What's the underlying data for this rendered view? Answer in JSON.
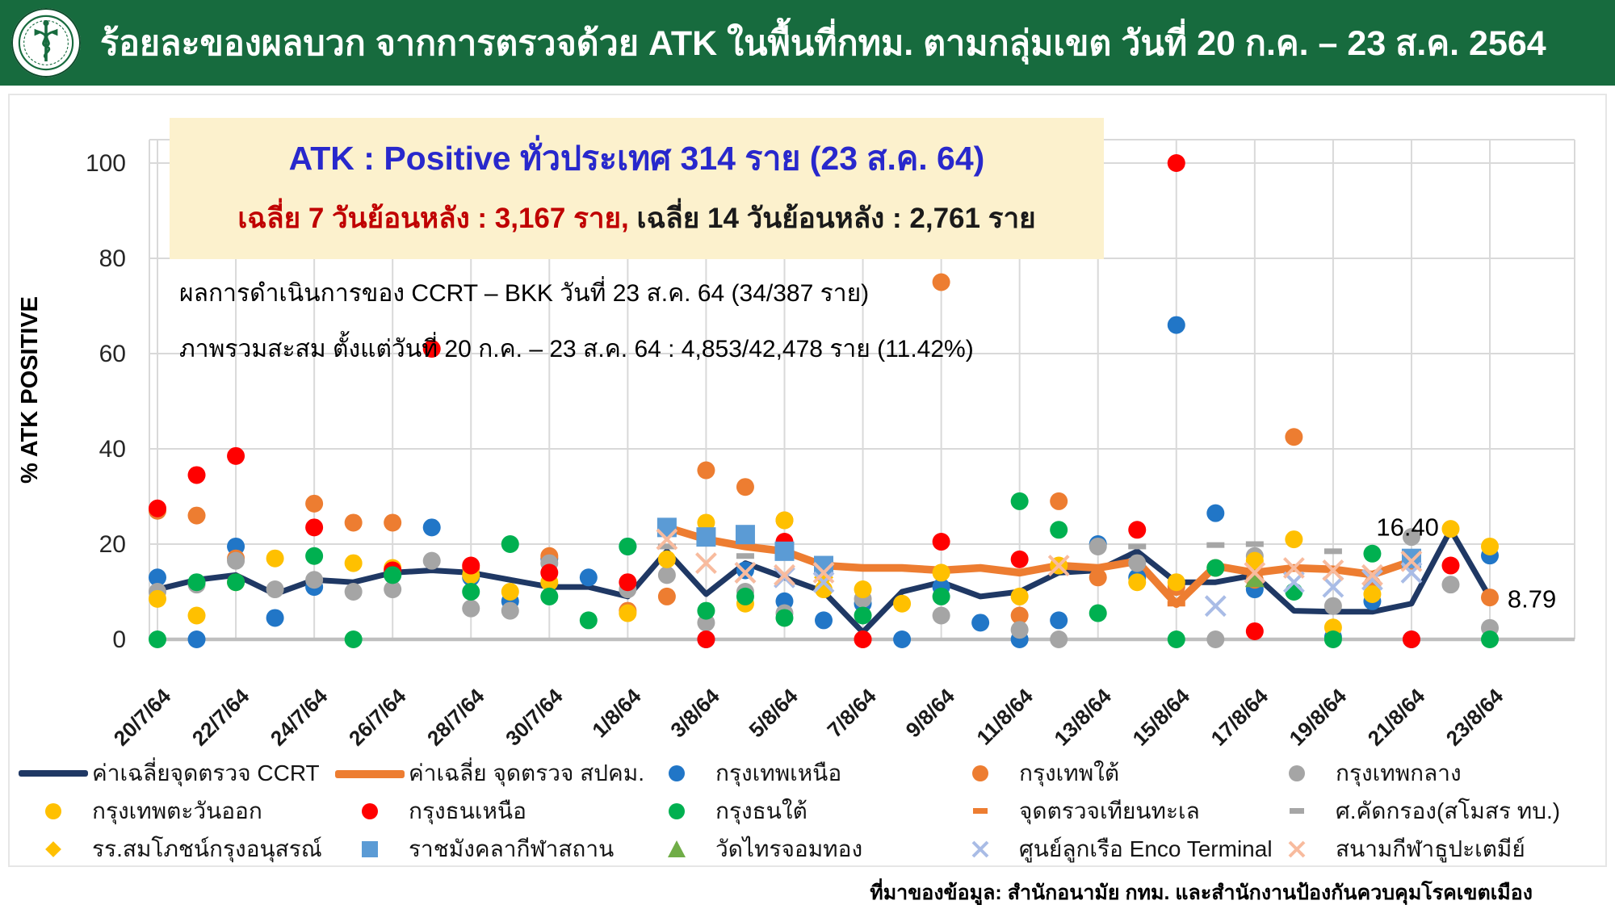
{
  "header": {
    "title": "ร้อยละของผลบวก จากการตรวจด้วย ATK ในพื้นที่กทม. ตามกลุ่มเขต วันที่ 20 ก.ค. – 23 ส.ค. 2564",
    "logo": "ministry-of-public-health-emblem"
  },
  "info_box": {
    "line1": "ATK : Positive ทั่วประเทศ 314 ราย (23 ส.ค. 64)",
    "line2_red": "เฉลี่ย 7 วันย้อนหลัง : 3,167 ราย,",
    "line2_black": " เฉลี่ย 14 วันย้อนหลัง : 2,761 ราย"
  },
  "notes": {
    "line1": "ผลการดำเนินการของ CCRT – BKK วันที่ 23 ส.ค. 64 (34/387 ราย)",
    "line2": "ภาพรวมสะสม ตั้งแต่วันที่ 20 ก.ค. – 23 ส.ค. 64 : 4,853/42,478 ราย (11.42%)"
  },
  "footer": {
    "source": "ที่มาของข้อมูล: สำนักอนามัย กทม. และสำนักงานป้องกันควบคุมโรคเขตเมือง"
  },
  "colors": {
    "header_green": "#176B3E",
    "info_box_bg": "#FCF1CD",
    "info_blue": "#2828CC",
    "info_red": "#C00000",
    "grid": "#D9D9D9",
    "axis": "#BFBFBF"
  },
  "chart_data": {
    "type": "line+scatter",
    "title": "",
    "xlabel": "",
    "ylabel": "% ATK POSITIVE",
    "ylim": [
      0,
      100
    ],
    "yticks": [
      0,
      20,
      40,
      60,
      80,
      100
    ],
    "x_tick_labels": [
      "20/7/64",
      "22/7/64",
      "24/7/64",
      "26/7/64",
      "28/7/64",
      "30/7/64",
      "1/8/64",
      "3/8/64",
      "5/8/64",
      "7/8/64",
      "9/8/64",
      "11/8/64",
      "13/8/64",
      "15/8/64",
      "17/8/64",
      "19/8/64",
      "21/8/64",
      "23/8/64"
    ],
    "x_note": "day index 0 = 20/7/64, one unit = one day, last day 34 = 23/8/64",
    "grid": true,
    "legend_position": "bottom",
    "annotations": [
      {
        "text": "16.40",
        "day": 32.7,
        "value": 23.5,
        "anchor": "end"
      },
      {
        "text": "8.79",
        "day": 34.45,
        "value": 8.4,
        "anchor": "start"
      }
    ],
    "series": [
      {
        "key": "ccrt_avg_line",
        "name": "ค่าเฉลี่ยจุดตรวจ CCRT",
        "type": "line",
        "marker": "line",
        "color": "#1F3864",
        "start_day": 0,
        "values": [
          10.5,
          12.5,
          13.5,
          9.5,
          12.5,
          12,
          14,
          14.5,
          14,
          12.5,
          11,
          11,
          9,
          18.5,
          9.5,
          16,
          13,
          10,
          1.5,
          10,
          12,
          9,
          10,
          14,
          14.5,
          18.5,
          12,
          12,
          13.5,
          6,
          5.8,
          5.8,
          7.5,
          23,
          8.79
        ]
      },
      {
        "key": "spkm_avg_line",
        "name": "ค่าเฉลี่ย จุดตรวจ สปคม.",
        "type": "line",
        "marker": "line",
        "color": "#ED7D31",
        "start_day": 13,
        "values": [
          23.5,
          21,
          19.5,
          18.5,
          15.5,
          15,
          15,
          14.5,
          15,
          14,
          15.5,
          15,
          16.4,
          7.4,
          15.4,
          14,
          15,
          14.7,
          13.6,
          16.4
        ]
      },
      {
        "key": "bangkok_north",
        "name": "กรุงเทพเหนือ",
        "type": "scatter",
        "marker": "circle",
        "color": "#2176C7",
        "points": [
          [
            0,
            13
          ],
          [
            1,
            0
          ],
          [
            2,
            19.5
          ],
          [
            3,
            4.5
          ],
          [
            4,
            11
          ],
          [
            6,
            13.5
          ],
          [
            7,
            23.5
          ],
          [
            8,
            13
          ],
          [
            9,
            8
          ],
          [
            10,
            17
          ],
          [
            11,
            13
          ],
          [
            12,
            19.5
          ],
          [
            14,
            0
          ],
          [
            15,
            14.5
          ],
          [
            16,
            8
          ],
          [
            17,
            4
          ],
          [
            18,
            7.5
          ],
          [
            19,
            0
          ],
          [
            20,
            11
          ],
          [
            21,
            3.5
          ],
          [
            22,
            0
          ],
          [
            23,
            4
          ],
          [
            24,
            20
          ],
          [
            25,
            13
          ],
          [
            26,
            66
          ],
          [
            27,
            26.5
          ],
          [
            28,
            10.5
          ],
          [
            30,
            0.5
          ],
          [
            31,
            8
          ],
          [
            32,
            0
          ],
          [
            34,
            17.6
          ]
        ]
      },
      {
        "key": "bangkok_south",
        "name": "กรุงเทพใต้",
        "type": "scatter",
        "marker": "circle",
        "color": "#ED7D31",
        "points": [
          [
            0,
            27
          ],
          [
            1,
            26
          ],
          [
            2,
            17
          ],
          [
            4,
            28.5
          ],
          [
            5,
            24.5
          ],
          [
            6,
            24.5
          ],
          [
            8,
            15
          ],
          [
            10,
            17.5
          ],
          [
            12,
            6
          ],
          [
            13,
            9
          ],
          [
            14,
            35.5
          ],
          [
            15,
            32
          ],
          [
            16,
            25
          ],
          [
            17,
            14.5
          ],
          [
            18,
            0
          ],
          [
            20,
            75
          ],
          [
            22,
            5
          ],
          [
            23,
            29
          ],
          [
            24,
            13
          ],
          [
            26,
            11
          ],
          [
            27,
            15
          ],
          [
            28,
            12.5
          ],
          [
            29,
            42.5
          ],
          [
            31,
            11.5
          ],
          [
            32,
            16.5
          ],
          [
            34,
            8.8
          ]
        ]
      },
      {
        "key": "bangkok_central",
        "name": "กรุงเทพกลาง",
        "type": "scatter",
        "marker": "circle",
        "color": "#A5A5A5",
        "points": [
          [
            0,
            10
          ],
          [
            1,
            11.5
          ],
          [
            2,
            16.5
          ],
          [
            3,
            10.5
          ],
          [
            4,
            12.5
          ],
          [
            5,
            10
          ],
          [
            6,
            10.5
          ],
          [
            7,
            16.5
          ],
          [
            8,
            6.5
          ],
          [
            9,
            6
          ],
          [
            10,
            16
          ],
          [
            12,
            10.5
          ],
          [
            13,
            13.5
          ],
          [
            14,
            3.5
          ],
          [
            15,
            10
          ],
          [
            16,
            5.5
          ],
          [
            18,
            8.5
          ],
          [
            20,
            5
          ],
          [
            22,
            2
          ],
          [
            23,
            0
          ],
          [
            24,
            19.5
          ],
          [
            25,
            16
          ],
          [
            27,
            0
          ],
          [
            28,
            17.5
          ],
          [
            30,
            7
          ],
          [
            32,
            21.5
          ],
          [
            33,
            11.5
          ],
          [
            34,
            2.4
          ]
        ]
      },
      {
        "key": "bangkok_east",
        "name": "กรุงเทพตะวันออก",
        "type": "scatter",
        "marker": "circle",
        "color": "#FFC000",
        "points": [
          [
            0,
            8.5
          ],
          [
            1,
            5
          ],
          [
            2,
            12
          ],
          [
            3,
            17
          ],
          [
            5,
            16
          ],
          [
            6,
            15
          ],
          [
            8,
            13.5
          ],
          [
            9,
            10
          ],
          [
            10,
            12
          ],
          [
            12,
            5.5
          ],
          [
            13,
            16.8
          ],
          [
            14,
            24.5
          ],
          [
            15,
            7.5
          ],
          [
            16,
            25
          ],
          [
            17,
            10.5
          ],
          [
            18,
            10.5
          ],
          [
            19,
            7.5
          ],
          [
            20,
            14
          ],
          [
            22,
            9
          ],
          [
            23,
            15.5
          ],
          [
            25,
            12
          ],
          [
            26,
            12
          ],
          [
            28,
            16.5
          ],
          [
            29,
            21
          ],
          [
            30,
            2.5
          ],
          [
            31,
            9.5
          ],
          [
            33,
            23.2
          ],
          [
            34,
            19.5
          ]
        ]
      },
      {
        "key": "thonburi_north",
        "name": "กรุงธนเหนือ",
        "type": "scatter",
        "marker": "circle",
        "color": "#FF0000",
        "points": [
          [
            0,
            27.5
          ],
          [
            1,
            34.5
          ],
          [
            2,
            38.5
          ],
          [
            4,
            23.5
          ],
          [
            6,
            14.5
          ],
          [
            7,
            61
          ],
          [
            8,
            15.5
          ],
          [
            10,
            14
          ],
          [
            12,
            12
          ],
          [
            14,
            0
          ],
          [
            16,
            20.5
          ],
          [
            17,
            14
          ],
          [
            18,
            0
          ],
          [
            20,
            20.5
          ],
          [
            22,
            16.8
          ],
          [
            25,
            23
          ],
          [
            26,
            100
          ],
          [
            28,
            1.7
          ],
          [
            32,
            0
          ],
          [
            33,
            15.5
          ]
        ]
      },
      {
        "key": "thonburi_south",
        "name": "กรุงธนใต้",
        "type": "scatter",
        "marker": "circle",
        "color": "#00B050",
        "points": [
          [
            0,
            0
          ],
          [
            1,
            12
          ],
          [
            2,
            12
          ],
          [
            4,
            17.5
          ],
          [
            5,
            0
          ],
          [
            6,
            13.5
          ],
          [
            8,
            10
          ],
          [
            9,
            20
          ],
          [
            10,
            9
          ],
          [
            11,
            4
          ],
          [
            12,
            19.5
          ],
          [
            14,
            6
          ],
          [
            15,
            9
          ],
          [
            16,
            4.5
          ],
          [
            18,
            5
          ],
          [
            20,
            9
          ],
          [
            22,
            29
          ],
          [
            23,
            23
          ],
          [
            24,
            5.5
          ],
          [
            26,
            0
          ],
          [
            27,
            15
          ],
          [
            29,
            10
          ],
          [
            30,
            0
          ],
          [
            31,
            18
          ],
          [
            34,
            0
          ]
        ]
      },
      {
        "key": "thian_talay_checkpoint",
        "name": "จุดตรวจเทียนทะเล",
        "type": "scatter",
        "marker": "dash",
        "color": "#ED7D31",
        "points": [
          [
            26,
            7.5
          ]
        ]
      },
      {
        "key": "army_club_screening",
        "name": "ศ.คัดกรอง(สโมสร ทบ.)",
        "type": "scatter",
        "marker": "dash",
        "color": "#A6A6A6",
        "points": [
          [
            13,
            19.5
          ],
          [
            15,
            17.5
          ],
          [
            17,
            16.5
          ],
          [
            25,
            19.5
          ],
          [
            27,
            19.8
          ],
          [
            28,
            20
          ],
          [
            30,
            18.5
          ],
          [
            32,
            17.5
          ]
        ]
      },
      {
        "key": "somphot_school",
        "name": "รร.สมโภชน์กรุงอนุสรณ์",
        "type": "scatter",
        "marker": "diamond",
        "color": "#FFC000",
        "points": [
          [
            17,
            13
          ]
        ]
      },
      {
        "key": "rajamangala_stadium",
        "name": "ราชมังคลากีฬาสถาน",
        "type": "scatter",
        "marker": "square",
        "color": "#5B9BD5",
        "points": [
          [
            13,
            23.5
          ],
          [
            14,
            21.5
          ],
          [
            15,
            22
          ],
          [
            16,
            18.5
          ],
          [
            17,
            15.5
          ],
          [
            32,
            17
          ]
        ]
      },
      {
        "key": "wat_sai_chomthong",
        "name": "วัดไทรจอมทอง",
        "type": "scatter",
        "marker": "triangle",
        "color": "#70AD47",
        "points": [
          [
            28,
            12.5
          ]
        ]
      },
      {
        "key": "enco_terminal",
        "name": "ศูนย์ลูกเรือ Enco Terminal",
        "type": "scatter",
        "marker": "x",
        "color": "#A9BCE6",
        "points": [
          [
            15,
            14
          ],
          [
            16,
            13
          ],
          [
            17,
            12
          ],
          [
            27,
            7
          ],
          [
            29,
            12
          ],
          [
            30,
            11
          ],
          [
            31,
            12.5
          ],
          [
            32,
            14
          ]
        ]
      },
      {
        "key": "thupatemee_stadium",
        "name": "สนามกีฬาธูปะเตมีย์",
        "type": "scatter",
        "marker": "x",
        "color": "#F8BB9E",
        "points": [
          [
            13,
            21
          ],
          [
            14,
            16
          ],
          [
            15,
            14
          ],
          [
            16,
            13.5
          ],
          [
            17,
            14
          ],
          [
            23,
            15.5
          ],
          [
            28,
            14
          ],
          [
            29,
            15
          ],
          [
            30,
            14.5
          ],
          [
            31,
            13.5
          ],
          [
            32,
            16.4
          ]
        ]
      }
    ]
  }
}
